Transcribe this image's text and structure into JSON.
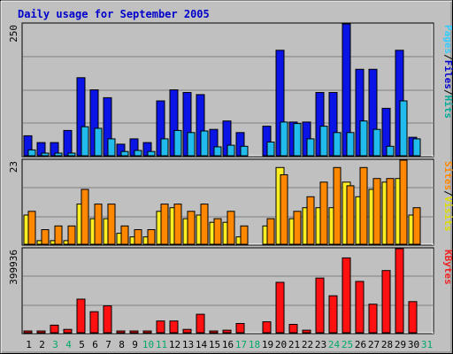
{
  "chart_data": {
    "type": "bar",
    "title": "Daily usage for September 2005",
    "days": [
      "1",
      "2",
      "3",
      "4",
      "5",
      "6",
      "7",
      "8",
      "9",
      "10",
      "11",
      "12",
      "13",
      "14",
      "15",
      "16",
      "17",
      "18",
      "19",
      "20",
      "21",
      "22",
      "23",
      "24",
      "25",
      "26",
      "27",
      "28",
      "29",
      "30",
      "31"
    ],
    "weekend_days": [
      "3",
      "4",
      "10",
      "11",
      "17",
      "18",
      "24",
      "25",
      "31"
    ],
    "panels": [
      {
        "id": "hits",
        "max_label": "250",
        "ymax": 250,
        "legend": [
          {
            "text": "Pages",
            "color": "#33ccff"
          },
          {
            "text": "/",
            "color": "#000000"
          },
          {
            "text": "Files",
            "color": "#0000cc"
          },
          {
            "text": "/",
            "color": "#000000"
          },
          {
            "text": "Hits",
            "color": "#00aa99"
          }
        ],
        "series": [
          {
            "name": "Files",
            "color": "#0a14e6",
            "values": [
              38,
              25,
              25,
              48,
              148,
              125,
              110,
              22,
              32,
              25,
              104,
              125,
              120,
              116,
              50,
              66,
              44,
              null,
              56,
              200,
              64,
              64,
              120,
              120,
              250,
              164,
              164,
              90,
              200,
              35,
              null
            ]
          },
          {
            "name": "Pages",
            "color": "#22bbee",
            "values": [
              11,
              5,
              5,
              5,
              55,
              52,
              32,
              8,
              10,
              8,
              32,
              48,
              44,
              47,
              17,
              20,
              18,
              null,
              26,
              64,
              61,
              32,
              56,
              44,
              44,
              66,
              50,
              18,
              104,
              32,
              null
            ]
          }
        ]
      },
      {
        "id": "visits",
        "max_label": "23",
        "ymax": 23,
        "legend": [
          {
            "text": "Sites",
            "color": "#ff8800"
          },
          {
            "text": "/",
            "color": "#000000"
          },
          {
            "text": "Visits",
            "color": "#dddd00"
          }
        ],
        "series": [
          {
            "name": "Visits",
            "color": "#ffee22",
            "values": [
              8,
              1,
              1,
              1,
              11,
              7,
              7,
              3,
              2,
              2,
              9,
              10,
              7,
              8,
              6,
              6,
              2,
              null,
              5,
              21,
              7,
              10,
              10,
              10,
              17,
              13,
              15,
              17,
              18,
              8,
              null
            ]
          },
          {
            "name": "Sites",
            "color": "#ff8800",
            "values": [
              9,
              4,
              5,
              5,
              15,
              11,
              11,
              5,
              4,
              4,
              11,
              11,
              9,
              11,
              7,
              9,
              5,
              null,
              7,
              19,
              9,
              13,
              17,
              21,
              16,
              21,
              18,
              18,
              23,
              10,
              null
            ]
          }
        ]
      },
      {
        "id": "kbytes",
        "max_label": "399936",
        "ymax": 399936,
        "legend": [
          {
            "text": "KBytes",
            "color": "#ee2222"
          }
        ],
        "series": [
          {
            "name": "KBytes",
            "color": "#ff1111",
            "values": [
              4000,
              4000,
              36000,
              16000,
              160000,
              100000,
              128000,
              4000,
              4000,
              4000,
              56000,
              56000,
              16000,
              88000,
              4000,
              12000,
              44000,
              null,
              52000,
              240000,
              40000,
              12000,
              260000,
              176000,
              356000,
              244000,
              136000,
              296000,
              399936,
              148000,
              null
            ]
          }
        ]
      }
    ]
  }
}
